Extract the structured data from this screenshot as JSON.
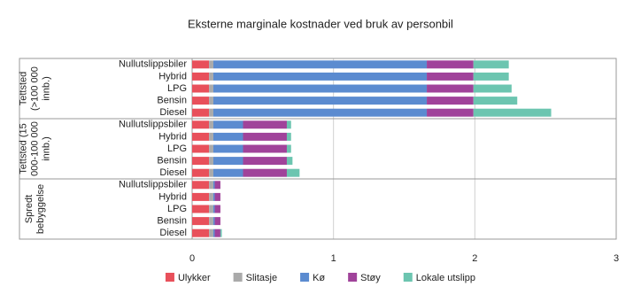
{
  "chart_data": {
    "type": "stacked-bar-horizontal",
    "title": "Eksterne marginale kostnader ved bruk av personbil",
    "groups": [
      {
        "name": "Tettsted (>100 000 innb.)"
      },
      {
        "name": "Tettsted (15 000-100 000 innb.)"
      },
      {
        "name": "Spredt bebyggelse"
      }
    ],
    "categories": [
      "Nullutslippsbiler",
      "Hybrid",
      "LPG",
      "Bensin",
      "Diesel",
      "Nullutslippsbiler",
      "Hybrid",
      "LPG",
      "Bensin",
      "Diesel",
      "Nullutslippsbiler",
      "Hybrid",
      "LPG",
      "Bensin",
      "Diesel"
    ],
    "series": [
      {
        "name": "Ulykker",
        "color": "#e8505b",
        "values": [
          0.12,
          0.12,
          0.12,
          0.12,
          0.12,
          0.12,
          0.12,
          0.12,
          0.12,
          0.12,
          0.12,
          0.12,
          0.12,
          0.12,
          0.12
        ]
      },
      {
        "name": "Slitasje",
        "color": "#aaaaaa",
        "values": [
          0.03,
          0.03,
          0.03,
          0.03,
          0.03,
          0.03,
          0.03,
          0.03,
          0.03,
          0.03,
          0.03,
          0.03,
          0.03,
          0.03,
          0.03
        ]
      },
      {
        "name": "Kø",
        "color": "#5b8bd0",
        "values": [
          1.51,
          1.51,
          1.51,
          1.51,
          1.51,
          0.21,
          0.21,
          0.21,
          0.21,
          0.21,
          0.01,
          0.01,
          0.01,
          0.01,
          0.01
        ]
      },
      {
        "name": "Støy",
        "color": "#a0439a",
        "values": [
          0.33,
          0.33,
          0.33,
          0.33,
          0.33,
          0.31,
          0.31,
          0.31,
          0.31,
          0.31,
          0.04,
          0.04,
          0.04,
          0.04,
          0.04
        ]
      },
      {
        "name": "Lokale utslipp",
        "color": "#6cc5b0",
        "values": [
          0.25,
          0.25,
          0.27,
          0.31,
          0.55,
          0.03,
          0.03,
          0.03,
          0.04,
          0.09,
          0,
          0,
          0,
          0,
          0.01
        ]
      }
    ],
    "xlim": [
      0,
      3
    ],
    "xticks": [
      0,
      1,
      2,
      3
    ],
    "grid": true
  }
}
